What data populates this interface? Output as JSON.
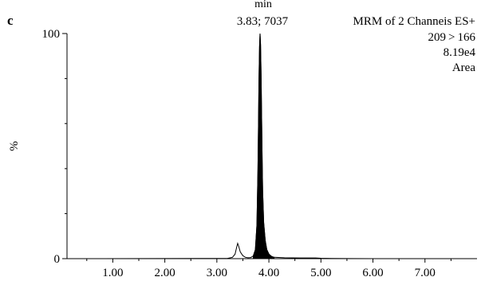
{
  "panel_label": "c",
  "header": {
    "line1": "MRM of 2 Channeis ES+",
    "line2": "209 > 166",
    "line3": "8.19e4",
    "line4": "Area"
  },
  "peak_label": {
    "unit": "min",
    "text": "3.83; 7037"
  },
  "colors": {
    "ink": "#000000",
    "background": "#ffffff"
  },
  "chart_data": {
    "type": "line",
    "title": "",
    "xlabel": "",
    "ylabel": "%",
    "xlim": [
      0.12,
      8.0
    ],
    "ylim": [
      0,
      100
    ],
    "x_ticks": [
      "1.00",
      "2.00",
      "3.00",
      "4.00",
      "5.00",
      "6.00",
      "7.00"
    ],
    "x_tick_values": [
      1.0,
      2.0,
      3.0,
      4.0,
      5.0,
      6.0,
      7.0
    ],
    "y_ticks": [
      "0",
      "100"
    ],
    "y_tick_values": [
      0,
      100
    ],
    "grid": false,
    "series": [
      {
        "fill_to_zero": true,
        "x": [
          0.12,
          3.2,
          3.3,
          3.35,
          3.38,
          3.4,
          3.42,
          3.45,
          3.5,
          3.55,
          3.6,
          3.65,
          3.7,
          3.74,
          3.77,
          3.79,
          3.8,
          3.81,
          3.82,
          3.83,
          3.84,
          3.85,
          3.86,
          3.87,
          3.88,
          3.9,
          3.93,
          3.96,
          4.0,
          4.05,
          4.1,
          4.3,
          4.6,
          4.9,
          5.0,
          5.2,
          5.5,
          6.0,
          7.0,
          8.0
        ],
        "y": [
          0,
          0.1,
          0.6,
          2.0,
          5.0,
          6.8,
          5.5,
          3.0,
          1.3,
          0.6,
          0.4,
          0.5,
          1.2,
          4.0,
          15.0,
          40.0,
          60.0,
          80.0,
          94.0,
          100.0,
          95.0,
          82.0,
          64.0,
          45.0,
          30.0,
          16.0,
          8.0,
          4.0,
          2.0,
          1.0,
          0.6,
          0.4,
          0.3,
          0.3,
          0.2,
          0.1,
          0.05,
          0,
          0,
          0
        ]
      }
    ]
  }
}
